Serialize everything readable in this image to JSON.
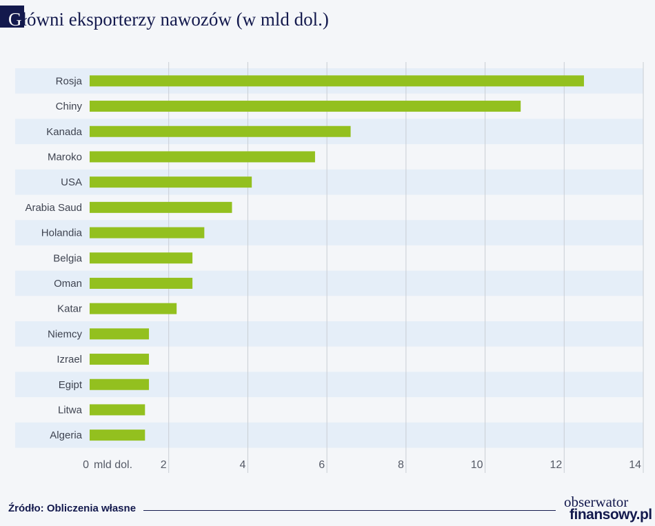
{
  "title": {
    "first_letter": "G",
    "rest": "łówni eksporterzy nawozów (w mld dol.)"
  },
  "chart_data": {
    "type": "bar",
    "orientation": "horizontal",
    "title": "Główni eksporterzy nawozów (w mld dol.)",
    "categories": [
      "Rosja",
      "Chiny",
      "Kanada",
      "Maroko",
      "USA",
      "Arabia Saud",
      "Holandia",
      "Belgia",
      "Oman",
      "Katar",
      "Niemcy",
      "Izrael",
      "Egipt",
      "Litwa",
      "Algeria"
    ],
    "values": [
      12.5,
      10.9,
      6.6,
      5.7,
      4.1,
      3.6,
      2.9,
      2.6,
      2.6,
      2.2,
      1.5,
      1.5,
      1.5,
      1.4,
      1.4
    ],
    "xlim": [
      0,
      14
    ],
    "xticks": [
      {
        "value": 0,
        "label": "0"
      },
      {
        "value": 2,
        "label": "2"
      },
      {
        "value": 4,
        "label": "4"
      },
      {
        "value": 6,
        "label": "6"
      },
      {
        "value": 8,
        "label": "8"
      },
      {
        "value": 10,
        "label": "10"
      },
      {
        "value": 12,
        "label": "12"
      },
      {
        "value": 14,
        "label": "14"
      }
    ],
    "x_unit": "mld dol.",
    "grid": true,
    "bar_color": "#93c01f",
    "band_color": "#e5eef8"
  },
  "footer": {
    "source": "Źródło: Obliczenia własne"
  },
  "logo": {
    "line1": "obserwator",
    "line2": "finansowy.pl"
  }
}
